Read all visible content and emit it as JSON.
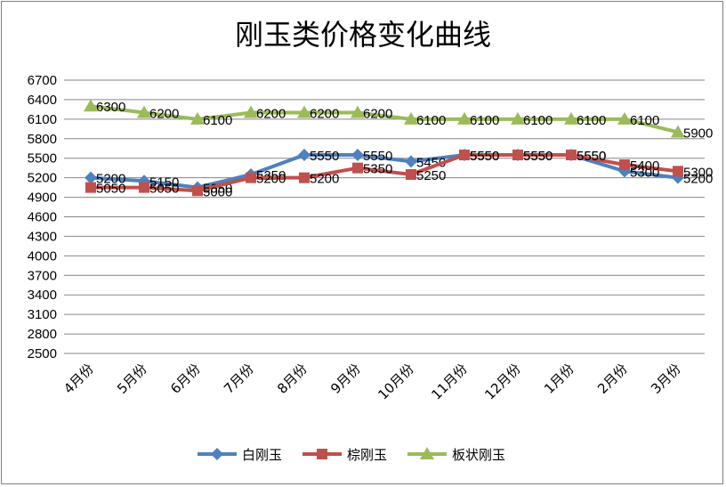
{
  "chart_data": {
    "type": "line",
    "title": "刚玉类价格变化曲线",
    "categories": [
      "4月份",
      "5月份",
      "6月份",
      "7月份",
      "8月份",
      "9月份",
      "10月份",
      "11月份",
      "12月份",
      "1月份",
      "2月份",
      "3月份"
    ],
    "ylim": [
      2500,
      6700
    ],
    "yticks": [
      2500,
      2800,
      3100,
      3400,
      3700,
      4000,
      4300,
      4600,
      4900,
      5200,
      5500,
      5800,
      6100,
      6400,
      6700
    ],
    "grid": true,
    "legend": "bottom",
    "series": [
      {
        "name": "白刚玉",
        "color": "#4f81bd",
        "marker": "diamond",
        "values": [
          5200,
          5150,
          5050,
          5250,
          5550,
          5550,
          5450,
          5550,
          5550,
          5550,
          5300,
          5200
        ]
      },
      {
        "name": "棕刚玉",
        "color": "#c0504d",
        "marker": "square",
        "values": [
          5050,
          5050,
          5000,
          5200,
          5200,
          5350,
          5250,
          5550,
          5550,
          5550,
          5400,
          5300
        ]
      },
      {
        "name": "板状刚玉",
        "color": "#9bbb59",
        "marker": "triangle",
        "values": [
          6300,
          6200,
          6100,
          6200,
          6200,
          6200,
          6100,
          6100,
          6100,
          6100,
          6100,
          5900
        ]
      }
    ]
  }
}
